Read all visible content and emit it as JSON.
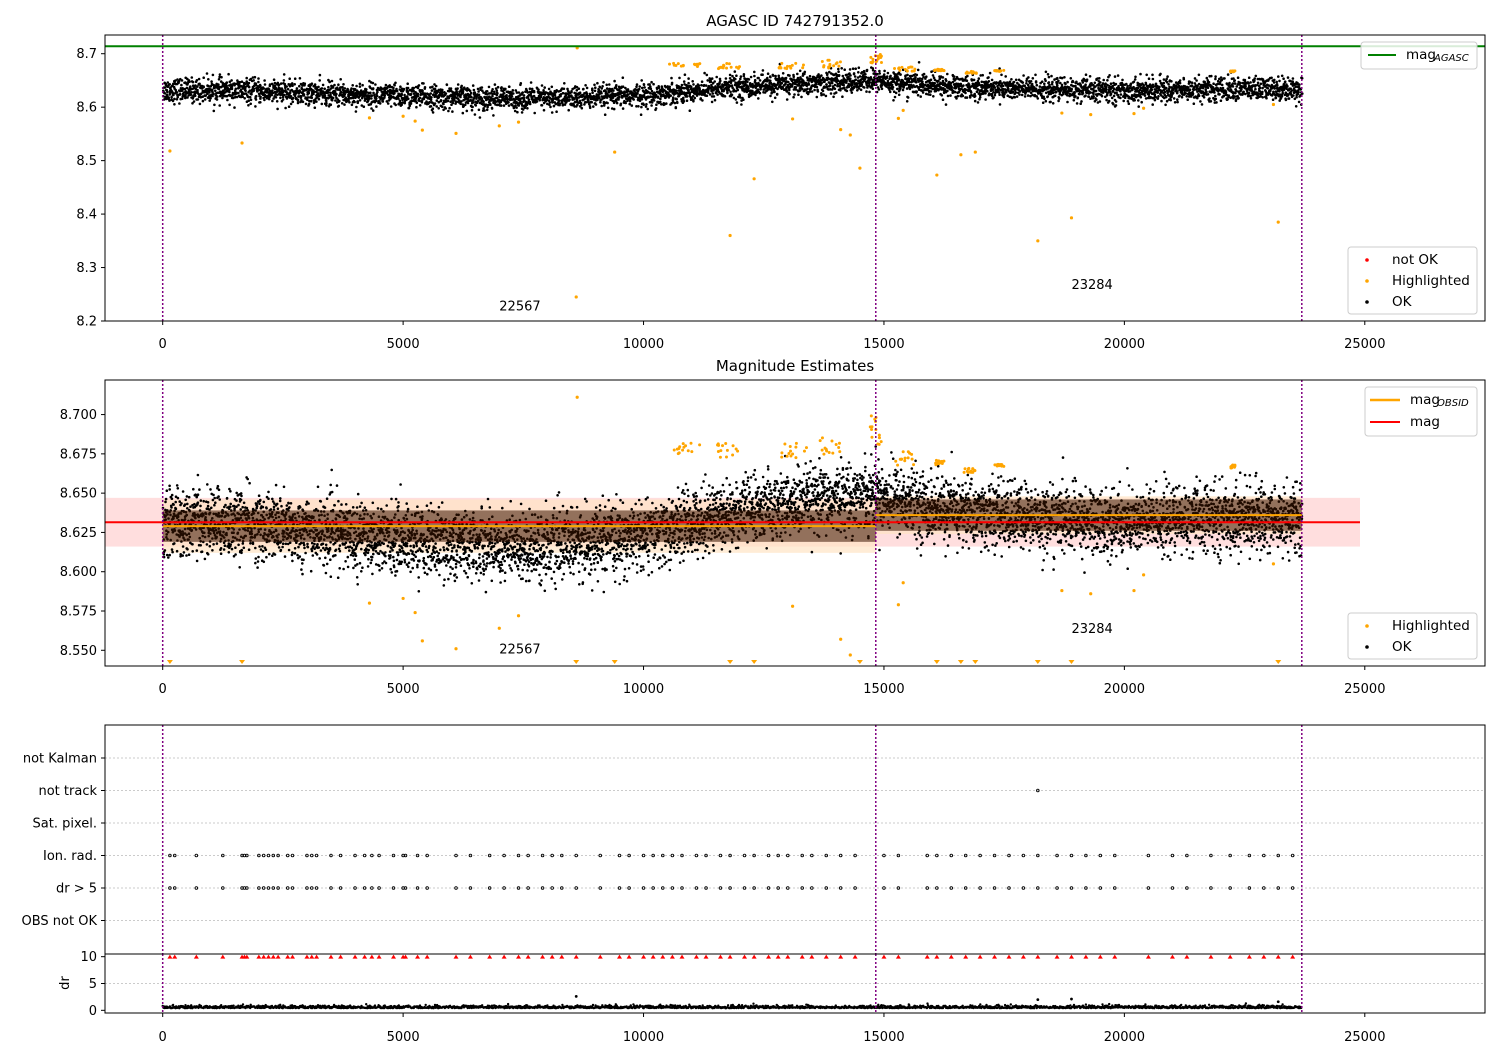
{
  "colors": {
    "ok": "#000000",
    "highlighted": "#ffa500",
    "not_ok": "#ff0000",
    "mag_agasc": "#008000",
    "mag_obsid": "#ffa500",
    "mag": "#ff0000",
    "obs_boundary": "#800080",
    "band_obsid": "#ffe4c4",
    "band_mag": "#ffd6d6"
  },
  "chart_data": [
    {
      "type": "scatter",
      "title": "AGASC ID 742791352.0",
      "xlim": [
        -1200,
        27500
      ],
      "ylim": [
        8.2,
        8.735
      ],
      "x_ticks": [
        0,
        5000,
        10000,
        15000,
        20000,
        25000
      ],
      "x_tick_labels": [
        "0",
        "5000",
        "10000",
        "15000",
        "20000",
        "25000"
      ],
      "y_ticks": [
        8.2,
        8.3,
        8.4,
        8.5,
        8.6,
        8.7
      ],
      "y_tick_labels": [
        "8.2",
        "8.3",
        "8.4",
        "8.5",
        "8.6",
        "8.7"
      ],
      "mag_agasc": 8.714,
      "obs_boundaries": [
        0,
        14830,
        23690
      ],
      "obsid_labels": [
        {
          "x": 7000,
          "y": 8.22,
          "text": "22567"
        },
        {
          "x": 18900,
          "y": 8.26,
          "text": "23284"
        }
      ],
      "legend_upper": [
        {
          "label": "mag",
          "sub": "AGASC",
          "style": "line",
          "color_key": "mag_agasc"
        }
      ],
      "legend_lower": [
        {
          "label": "not OK",
          "style": "dot",
          "color_key": "not_ok"
        },
        {
          "label": "Highlighted",
          "style": "dot",
          "color_key": "highlighted"
        },
        {
          "label": "OK",
          "style": "dot",
          "color_key": "ok"
        }
      ],
      "ok_trend": [
        [
          0,
          8.632
        ],
        [
          1500,
          8.631
        ],
        [
          3000,
          8.626
        ],
        [
          4500,
          8.622
        ],
        [
          6000,
          8.618
        ],
        [
          7500,
          8.616
        ],
        [
          9000,
          8.618
        ],
        [
          10300,
          8.624
        ],
        [
          11500,
          8.636
        ],
        [
          13000,
          8.642
        ],
        [
          14000,
          8.646
        ],
        [
          14830,
          8.65
        ],
        [
          16000,
          8.64
        ],
        [
          18000,
          8.634
        ],
        [
          20000,
          8.631
        ],
        [
          22000,
          8.634
        ],
        [
          23690,
          8.634
        ]
      ],
      "highlighted_outliers": [
        {
          "x": 150,
          "y": 8.518
        },
        {
          "x": 1650,
          "y": 8.533
        },
        {
          "x": 4300,
          "y": 8.58
        },
        {
          "x": 5000,
          "y": 8.583
        },
        {
          "x": 5250,
          "y": 8.574
        },
        {
          "x": 5400,
          "y": 8.557
        },
        {
          "x": 6100,
          "y": 8.551
        },
        {
          "x": 7000,
          "y": 8.565
        },
        {
          "x": 7400,
          "y": 8.572
        },
        {
          "x": 8600,
          "y": 8.245
        },
        {
          "x": 8620,
          "y": 8.711
        },
        {
          "x": 9400,
          "y": 8.516
        },
        {
          "x": 11800,
          "y": 8.36
        },
        {
          "x": 12300,
          "y": 8.466
        },
        {
          "x": 13100,
          "y": 8.578
        },
        {
          "x": 14100,
          "y": 8.558
        },
        {
          "x": 14300,
          "y": 8.548
        },
        {
          "x": 14500,
          "y": 8.486
        },
        {
          "x": 15300,
          "y": 8.579
        },
        {
          "x": 15400,
          "y": 8.594
        },
        {
          "x": 16100,
          "y": 8.473
        },
        {
          "x": 16600,
          "y": 8.511
        },
        {
          "x": 16900,
          "y": 8.516
        },
        {
          "x": 18200,
          "y": 8.35
        },
        {
          "x": 18700,
          "y": 8.589
        },
        {
          "x": 18900,
          "y": 8.393
        },
        {
          "x": 19300,
          "y": 8.586
        },
        {
          "x": 20200,
          "y": 8.588
        },
        {
          "x": 20400,
          "y": 8.598
        },
        {
          "x": 23200,
          "y": 8.385
        },
        {
          "x": 23100,
          "y": 8.605
        }
      ],
      "highlighted_upper_ranges": [
        [
          10400,
          11200,
          8.675,
          8.682
        ],
        [
          11500,
          12000,
          8.672,
          8.682
        ],
        [
          12800,
          13400,
          8.672,
          8.683
        ],
        [
          13650,
          14100,
          8.672,
          8.688
        ],
        [
          14700,
          14950,
          8.68,
          8.703
        ],
        [
          15200,
          15650,
          8.667,
          8.677
        ],
        [
          16050,
          16250,
          8.668,
          8.671
        ],
        [
          16650,
          16950,
          8.663,
          8.667
        ],
        [
          17300,
          17500,
          8.667,
          8.669
        ],
        [
          22200,
          22300,
          8.666,
          8.668
        ]
      ]
    },
    {
      "type": "scatter",
      "title": "Magnitude Estimates",
      "xlim": [
        -1200,
        27500
      ],
      "ylim": [
        8.54,
        8.722
      ],
      "x_ticks": [
        0,
        5000,
        10000,
        15000,
        20000,
        25000
      ],
      "x_tick_labels": [
        "0",
        "5000",
        "10000",
        "15000",
        "20000",
        "25000"
      ],
      "y_ticks": [
        8.55,
        8.575,
        8.6,
        8.625,
        8.65,
        8.675,
        8.7
      ],
      "y_tick_labels": [
        "8.550",
        "8.575",
        "8.600",
        "8.625",
        "8.650",
        "8.675",
        "8.700"
      ],
      "mag": 8.6315,
      "mag_band": [
        8.616,
        8.647
      ],
      "mag_extent": [
        -1200,
        24900
      ],
      "obsid_segments": [
        {
          "x0": 0,
          "x1": 14830,
          "mag": 8.629,
          "band": [
            8.612,
            8.646
          ]
        },
        {
          "x0": 14830,
          "x1": 23690,
          "mag": 8.636,
          "band": [
            8.624,
            8.648
          ]
        }
      ],
      "obs_boundaries": [
        0,
        14830,
        23690
      ],
      "obsid_labels": [
        {
          "x": 7000,
          "y": 8.548,
          "text": "22567"
        },
        {
          "x": 18900,
          "y": 8.561,
          "text": "23284"
        }
      ],
      "legend_upper": [
        {
          "label": "mag",
          "sub": "OBSID",
          "style": "line",
          "color_key": "mag_obsid"
        },
        {
          "label": "mag",
          "sub": "",
          "style": "line",
          "color_key": "mag"
        }
      ],
      "legend_lower": [
        {
          "label": "Highlighted",
          "style": "dot",
          "color_key": "highlighted"
        },
        {
          "label": "OK",
          "style": "dot",
          "color_key": "ok"
        }
      ],
      "ok_trend": [
        [
          0,
          8.632
        ],
        [
          1500,
          8.631
        ],
        [
          3000,
          8.626
        ],
        [
          4500,
          8.622
        ],
        [
          6000,
          8.618
        ],
        [
          7500,
          8.616
        ],
        [
          9000,
          8.618
        ],
        [
          10300,
          8.624
        ],
        [
          11500,
          8.636
        ],
        [
          13000,
          8.642
        ],
        [
          14000,
          8.646
        ],
        [
          14830,
          8.65
        ],
        [
          16000,
          8.64
        ],
        [
          18000,
          8.634
        ],
        [
          20000,
          8.631
        ],
        [
          22000,
          8.634
        ],
        [
          23690,
          8.634
        ]
      ],
      "highlighted_outliers": [
        {
          "x": 4300,
          "y": 8.58
        },
        {
          "x": 5000,
          "y": 8.583
        },
        {
          "x": 5250,
          "y": 8.574
        },
        {
          "x": 5400,
          "y": 8.556
        },
        {
          "x": 6100,
          "y": 8.551
        },
        {
          "x": 7000,
          "y": 8.564
        },
        {
          "x": 7400,
          "y": 8.572
        },
        {
          "x": 8620,
          "y": 8.711
        },
        {
          "x": 13100,
          "y": 8.578
        },
        {
          "x": 14100,
          "y": 8.557
        },
        {
          "x": 14300,
          "y": 8.547
        },
        {
          "x": 15300,
          "y": 8.579
        },
        {
          "x": 15400,
          "y": 8.593
        },
        {
          "x": 18700,
          "y": 8.588
        },
        {
          "x": 19300,
          "y": 8.586
        },
        {
          "x": 20200,
          "y": 8.588
        },
        {
          "x": 20400,
          "y": 8.598
        },
        {
          "x": 23100,
          "y": 8.605
        }
      ],
      "highlighted_upper_ranges": [
        [
          10400,
          11200,
          8.675,
          8.682
        ],
        [
          11500,
          12000,
          8.672,
          8.682
        ],
        [
          12800,
          13400,
          8.672,
          8.683
        ],
        [
          13650,
          14100,
          8.672,
          8.688
        ],
        [
          14700,
          14950,
          8.68,
          8.703
        ],
        [
          15200,
          15650,
          8.667,
          8.677
        ],
        [
          16050,
          16250,
          8.668,
          8.671
        ],
        [
          16650,
          16950,
          8.663,
          8.667
        ],
        [
          17300,
          17500,
          8.667,
          8.669
        ],
        [
          22200,
          22300,
          8.666,
          8.668
        ]
      ],
      "below_axis_markers_x": [
        150,
        1650,
        8600,
        9400,
        11800,
        12300,
        14500,
        16100,
        16600,
        16900,
        18200,
        18900,
        23200
      ]
    },
    {
      "type": "scatter",
      "title": "",
      "xlim": [
        -1200,
        27500
      ],
      "categories": [
        "not Kalman",
        "not track",
        "Sat. pixel.",
        "Ion. rad.",
        "dr > 5",
        "OBS not OK"
      ],
      "flag_rows": {
        "not track": [
          18200
        ],
        "Ion. rad.": [
          150,
          250,
          700,
          1250,
          1650,
          1700,
          1750,
          2000,
          2100,
          2200,
          2300,
          2400,
          2600,
          2700,
          3000,
          3100,
          3200,
          3500,
          3700,
          4000,
          4200,
          4350,
          4500,
          4800,
          5000,
          5050,
          5300,
          5500,
          6100,
          6400,
          6800,
          7100,
          7400,
          7600,
          7900,
          8100,
          8300,
          8600,
          9100,
          9500,
          9700,
          10000,
          10200,
          10400,
          10600,
          10800,
          11100,
          11300,
          11600,
          11800,
          12100,
          12300,
          12600,
          12800,
          13000,
          13300,
          13500,
          13800,
          14100,
          14400,
          15000,
          15300,
          15900,
          16100,
          16400,
          16700,
          17000,
          17300,
          17600,
          17900,
          18200,
          18600,
          18900,
          19200,
          19500,
          19800,
          20500,
          21000,
          21300,
          21800,
          22200,
          22600,
          22900,
          23200,
          23500
        ],
        "dr > 5": [
          150,
          250,
          700,
          1250,
          1650,
          1700,
          1750,
          2000,
          2100,
          2200,
          2300,
          2400,
          2600,
          2700,
          3000,
          3100,
          3200,
          3500,
          3700,
          4000,
          4200,
          4350,
          4500,
          4800,
          5000,
          5050,
          5300,
          5500,
          6100,
          6400,
          6800,
          7100,
          7400,
          7600,
          7900,
          8100,
          8300,
          8600,
          9100,
          9500,
          9700,
          10000,
          10200,
          10400,
          10600,
          10800,
          11100,
          11300,
          11600,
          11800,
          12100,
          12300,
          12600,
          12800,
          13000,
          13300,
          13500,
          13800,
          14100,
          14400,
          15000,
          15300,
          15900,
          16100,
          16400,
          16700,
          17000,
          17300,
          17600,
          17900,
          18200,
          18600,
          18900,
          19200,
          19500,
          19800,
          20500,
          21000,
          21300,
          21800,
          22200,
          22600,
          22900,
          23200,
          23500
        ]
      },
      "obs_boundaries": [
        0,
        14830,
        23690
      ]
    },
    {
      "type": "scatter",
      "title": "",
      "ylabel": "dr",
      "xlim": [
        -1200,
        27500
      ],
      "ylim": [
        -0.5,
        10.5
      ],
      "x_ticks": [
        0,
        5000,
        10000,
        15000,
        20000,
        25000
      ],
      "x_tick_labels": [
        "0",
        "5000",
        "10000",
        "15000",
        "20000",
        "25000"
      ],
      "y_ticks": [
        0,
        5,
        10
      ],
      "y_tick_labels": [
        "0",
        "5",
        "10"
      ],
      "dr_baseline": 0.4,
      "dr_outliers": [
        {
          "x": 8600,
          "y": 2.6
        },
        {
          "x": 18200,
          "y": 2.0
        },
        {
          "x": 18900,
          "y": 2.1
        },
        {
          "x": 23200,
          "y": 1.6
        }
      ],
      "clipped_at": 10,
      "obs_boundaries": [
        0,
        14830,
        23690
      ]
    }
  ]
}
